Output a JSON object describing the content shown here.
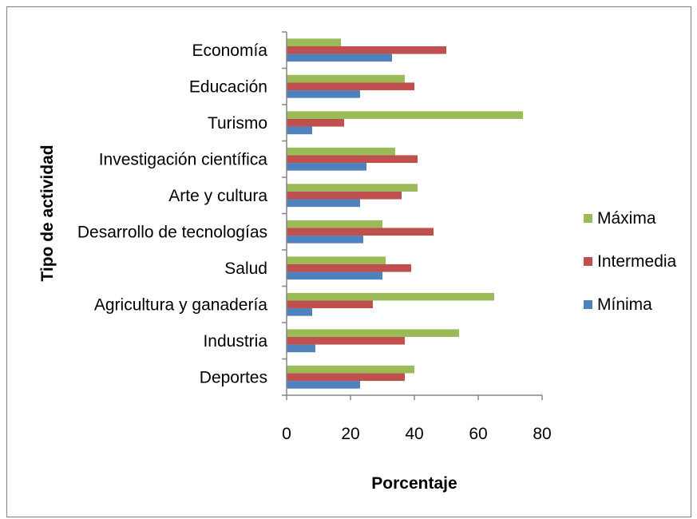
{
  "chart_data": {
    "type": "bar",
    "orientation": "horizontal",
    "title": "",
    "xlabel": "Porcentaje",
    "ylabel": "Tipo de actividad",
    "xlim": [
      0,
      80
    ],
    "xticks": [
      "0",
      "20",
      "40",
      "60",
      "80"
    ],
    "grid": false,
    "legend_position": "right",
    "categories": [
      "Economía",
      "Educación",
      "Turismo",
      "Investigación científica",
      "Arte y cultura",
      "Desarrollo de tecnologías",
      "Salud",
      "Agricultura y ganadería",
      "Industria",
      "Deportes"
    ],
    "series": [
      {
        "name": "Máxima",
        "color": "#9bbb59",
        "values": [
          17,
          37,
          74,
          34,
          41,
          30,
          31,
          65,
          54,
          40
        ]
      },
      {
        "name": "Intermedia",
        "color": "#c0504d",
        "values": [
          50,
          40,
          18,
          41,
          36,
          46,
          39,
          27,
          37,
          37
        ]
      },
      {
        "name": "Mínima",
        "color": "#4f81bd",
        "values": [
          33,
          23,
          8,
          25,
          23,
          24,
          30,
          8,
          9,
          23
        ]
      }
    ]
  }
}
